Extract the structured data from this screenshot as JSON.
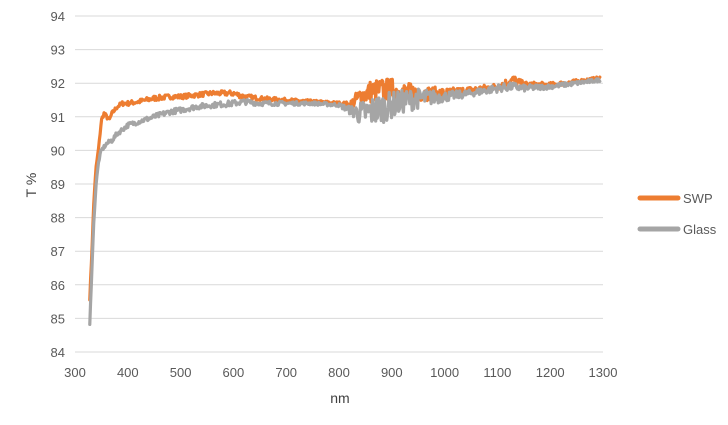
{
  "chart_data": {
    "type": "line",
    "xlabel": "nm",
    "ylabel": "T %",
    "xlim": [
      300,
      1300
    ],
    "ylim": [
      84,
      94
    ],
    "x_ticks": [
      300,
      400,
      500,
      600,
      700,
      800,
      900,
      1000,
      1100,
      1200,
      1300
    ],
    "y_ticks": [
      84,
      85,
      86,
      87,
      88,
      89,
      90,
      91,
      92,
      93,
      94
    ],
    "grid": "horizontal",
    "legend_position": "right",
    "series": [
      {
        "name": "SWP",
        "color": "#ED7D31",
        "x": [
          328,
          332,
          336,
          340,
          345,
          350,
          355,
          360,
          365,
          370,
          380,
          390,
          400,
          420,
          450,
          480,
          500,
          530,
          560,
          600,
          620,
          650,
          700,
          750,
          800,
          820,
          840,
          860,
          880,
          900,
          920,
          950,
          1000,
          1050,
          1100,
          1130,
          1150,
          1200,
          1250,
          1295
        ],
        "y": [
          85.6,
          87.0,
          88.6,
          89.5,
          90.1,
          90.9,
          91.1,
          91.0,
          90.9,
          91.1,
          91.3,
          91.4,
          91.4,
          91.45,
          91.55,
          91.6,
          91.6,
          91.65,
          91.7,
          91.7,
          91.6,
          91.55,
          91.5,
          91.45,
          91.4,
          91.35,
          91.6,
          91.75,
          91.8,
          91.8,
          91.75,
          91.7,
          91.7,
          91.8,
          91.9,
          92.1,
          91.95,
          91.95,
          92.05,
          92.15
        ],
        "noise": [
          0.05,
          0.05,
          0.05,
          0.05,
          0.05,
          0.05,
          0.06,
          0.06,
          0.06,
          0.06,
          0.06,
          0.07,
          0.07,
          0.07,
          0.08,
          0.07,
          0.07,
          0.07,
          0.07,
          0.08,
          0.08,
          0.06,
          0.05,
          0.05,
          0.05,
          0.1,
          0.3,
          0.35,
          0.35,
          0.35,
          0.3,
          0.25,
          0.15,
          0.1,
          0.1,
          0.15,
          0.1,
          0.07,
          0.06,
          0.05
        ]
      },
      {
        "name": "Glass",
        "color": "#A5A5A5",
        "x": [
          328,
          332,
          336,
          340,
          345,
          350,
          355,
          360,
          370,
          380,
          400,
          420,
          450,
          480,
          500,
          530,
          560,
          600,
          620,
          650,
          700,
          750,
          800,
          820,
          840,
          860,
          880,
          900,
          920,
          950,
          1000,
          1050,
          1100,
          1130,
          1150,
          1200,
          1250,
          1295
        ],
        "y": [
          84.8,
          86.5,
          88.0,
          89.0,
          89.7,
          90.0,
          90.1,
          90.2,
          90.3,
          90.5,
          90.75,
          90.85,
          91.0,
          91.15,
          91.2,
          91.3,
          91.35,
          91.4,
          91.45,
          91.4,
          91.4,
          91.4,
          91.35,
          91.2,
          91.1,
          91.15,
          91.25,
          91.35,
          91.45,
          91.55,
          91.6,
          91.7,
          91.85,
          91.9,
          91.85,
          91.9,
          92.0,
          92.1
        ],
        "noise": [
          0.05,
          0.05,
          0.05,
          0.05,
          0.05,
          0.06,
          0.06,
          0.06,
          0.07,
          0.07,
          0.07,
          0.07,
          0.08,
          0.08,
          0.08,
          0.08,
          0.08,
          0.09,
          0.08,
          0.07,
          0.06,
          0.05,
          0.05,
          0.12,
          0.35,
          0.45,
          0.45,
          0.4,
          0.35,
          0.3,
          0.15,
          0.1,
          0.12,
          0.12,
          0.1,
          0.07,
          0.06,
          0.05
        ]
      }
    ]
  }
}
